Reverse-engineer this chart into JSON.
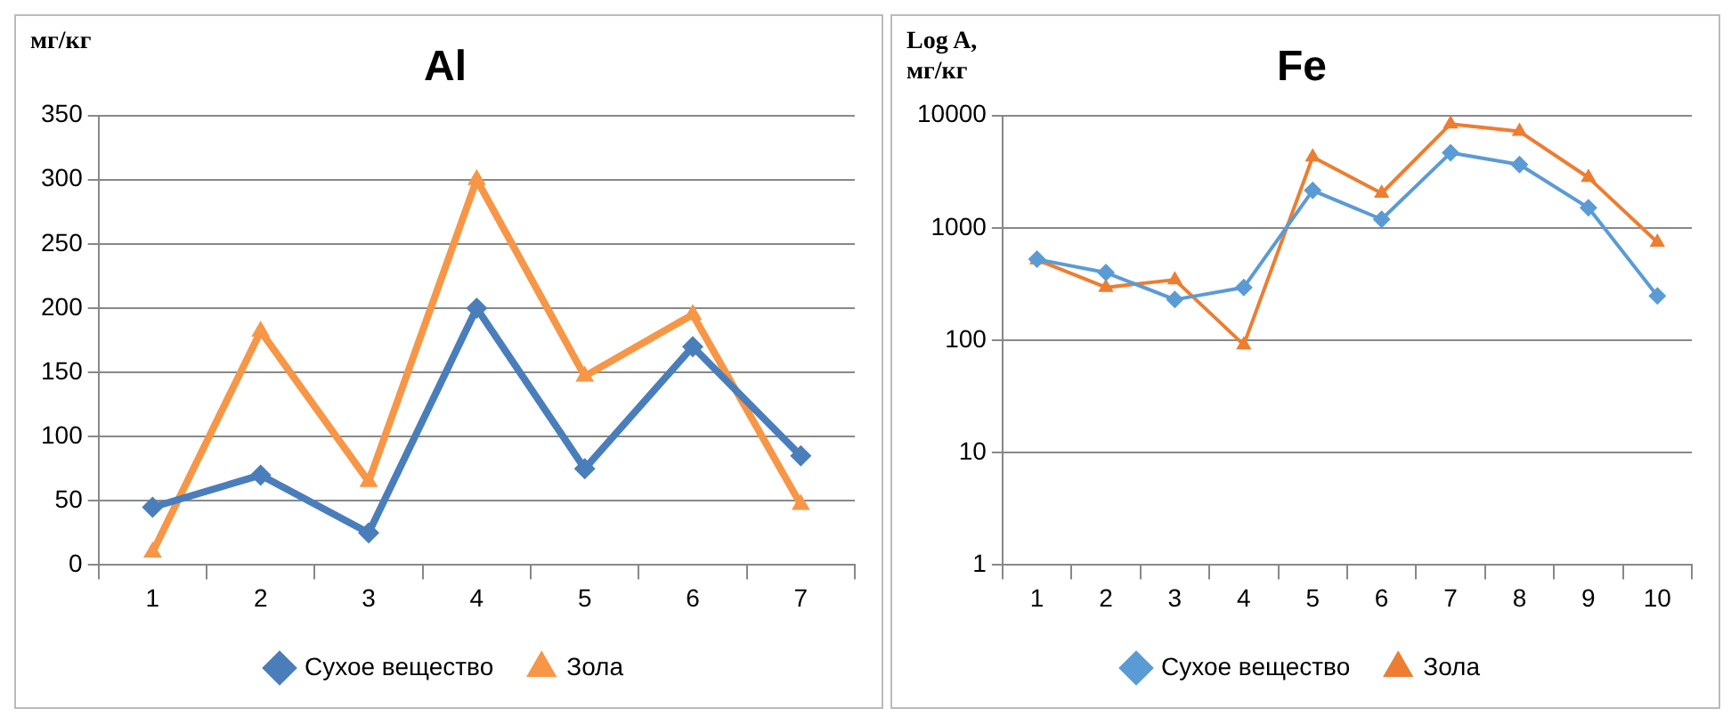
{
  "chart_data": [
    {
      "type": "line",
      "title": "Al",
      "ylabel": "мг/кг",
      "categories": [
        "1",
        "2",
        "3",
        "4",
        "5",
        "6",
        "7"
      ],
      "series": [
        {
          "name": "Сухое вещество",
          "color": "#4a7ebb",
          "marker": "diamond",
          "values": [
            45,
            70,
            25,
            200,
            75,
            170,
            85
          ]
        },
        {
          "name": "Зола",
          "color": "#f79646",
          "marker": "triangle",
          "values": [
            10,
            182,
            65,
            300,
            147,
            195,
            47
          ]
        }
      ],
      "ylim": [
        0,
        350
      ],
      "yticks": [
        0,
        50,
        100,
        150,
        200,
        250,
        300,
        350
      ],
      "grid": "y",
      "legend": "bottom"
    },
    {
      "type": "line",
      "title": "Fe",
      "ylabel": "Log A, мг/кг",
      "categories": [
        "1",
        "2",
        "3",
        "4",
        "5",
        "6",
        "7",
        "8",
        "9",
        "10"
      ],
      "series": [
        {
          "name": "Сухое вещество",
          "color": "#5b9bd5",
          "marker": "diamond",
          "values": [
            525,
            400,
            230,
            295,
            2150,
            1190,
            4650,
            3660,
            1510,
            248
          ]
        },
        {
          "name": "Зола",
          "color": "#ed7d31",
          "marker": "triangle",
          "values": [
            520,
            295,
            345,
            91,
            4270,
            2030,
            8400,
            7200,
            2800,
            745
          ]
        }
      ],
      "ylim": [
        1,
        10000
      ],
      "yticks": [
        1,
        10,
        100,
        1000,
        10000
      ],
      "log": "y",
      "grid": "y",
      "legend": "bottom"
    }
  ]
}
